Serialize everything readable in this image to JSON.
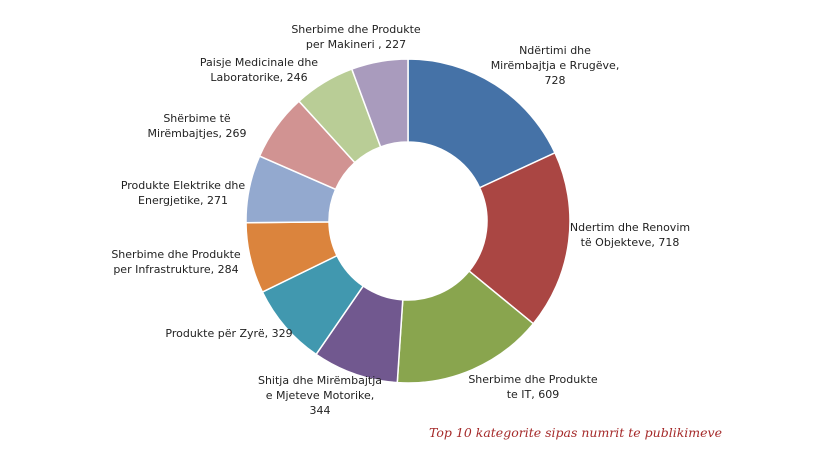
{
  "chart_data": {
    "type": "pie",
    "variant": "donut",
    "categories": [
      "Ndërtimi dhe Mirëmbajtja e Rrugëve",
      "Ndertim dhe Renovim të Objekteve",
      "Sherbime dhe Produkte te IT",
      "Shitja dhe Mirëmbajtja e Mjeteve Motorike",
      "Produkte për Zyrë",
      "Sherbime dhe Produkte per Infrastrukture",
      "Produkte Elektrike dhe Energjetike",
      "Shërbime të Mirëmbajtjes",
      "Paisje Medicinale dhe Laboratorike",
      "Sherbime dhe Produkte per Makineri"
    ],
    "values": [
      728,
      718,
      609,
      344,
      329,
      284,
      271,
      269,
      246,
      227
    ],
    "colors": [
      "#4572a7",
      "#aa4643",
      "#89a54e",
      "#71588f",
      "#4198af",
      "#db843d",
      "#93a9cf",
      "#d19392",
      "#b9cd96",
      "#a99bbd"
    ],
    "labels": [
      [
        "Ndërtimi dhe",
        "Mirëmbajtja e Rrugëve,",
        "728"
      ],
      [
        "Ndertim dhe Renovim",
        "të Objekteve, 718"
      ],
      [
        "Sherbime dhe Produkte",
        "te IT, 609"
      ],
      [
        "Shitja dhe Mirëmbajtja",
        "e Mjeteve Motorike,",
        "344"
      ],
      [
        "Produkte për Zyrë, 329"
      ],
      [
        "Sherbime dhe Produkte",
        "per Infrastrukture, 284"
      ],
      [
        "Produkte Elektrike dhe",
        "Energjetike, 271"
      ],
      [
        "Shërbime të",
        "Mirëmbajtjes, 269"
      ],
      [
        "Paisje Medicinale dhe",
        "Laboratorike, 246"
      ],
      [
        "Sherbime dhe Produkte",
        "per Makineri , 227"
      ]
    ],
    "title": "",
    "caption": "Top 10 kategorite sipas numrit te publikimeve",
    "legend": "none"
  }
}
